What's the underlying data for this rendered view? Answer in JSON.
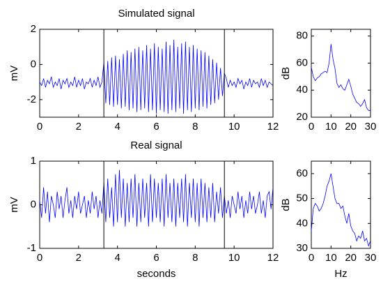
{
  "chart_data": [
    {
      "type": "line",
      "title": "Simulated signal",
      "ylabel": "mV",
      "color": "#0000ff",
      "xlim": [
        0,
        12
      ],
      "xticks": [
        0,
        2,
        4,
        6,
        8,
        10,
        12
      ],
      "ylim": [
        -3,
        2
      ],
      "yticks": [
        -2,
        0,
        2
      ],
      "vlines": [
        3.3,
        9.5
      ],
      "x": [
        0,
        0.1,
        0.2,
        0.3,
        0.4,
        0.5,
        0.6,
        0.7,
        0.8,
        0.9,
        1,
        1.1,
        1.2,
        1.3,
        1.4,
        1.5,
        1.6,
        1.7,
        1.8,
        1.9,
        2,
        2.1,
        2.2,
        2.3,
        2.4,
        2.5,
        2.6,
        2.7,
        2.8,
        2.9,
        3,
        3.1,
        3.2,
        3.3,
        3.4,
        3.5,
        3.6,
        3.7,
        3.8,
        3.9,
        4,
        4.1,
        4.2,
        4.3,
        4.4,
        4.5,
        4.6,
        4.7,
        4.8,
        4.9,
        5,
        5.1,
        5.2,
        5.3,
        5.4,
        5.5,
        5.6,
        5.7,
        5.8,
        5.9,
        6,
        6.1,
        6.2,
        6.3,
        6.4,
        6.5,
        6.6,
        6.7,
        6.8,
        6.9,
        7,
        7.1,
        7.2,
        7.3,
        7.4,
        7.5,
        7.6,
        7.7,
        7.8,
        7.9,
        8,
        8.1,
        8.2,
        8.3,
        8.4,
        8.5,
        8.6,
        8.7,
        8.8,
        8.9,
        9,
        9.1,
        9.2,
        9.3,
        9.4,
        9.5,
        9.6,
        9.7,
        9.8,
        9.9,
        10,
        10.1,
        10.2,
        10.3,
        10.4,
        10.5,
        10.6,
        10.7,
        10.8,
        10.9,
        11,
        11.1,
        11.2,
        11.3,
        11.4,
        11.5,
        11.6,
        11.7,
        11.8,
        11.9,
        12
      ],
      "values": [
        -1.0,
        -1.2,
        -0.8,
        -1.3,
        -0.9,
        -1.1,
        -0.7,
        -1.3,
        -1.0,
        -1.2,
        -0.8,
        -1.4,
        -0.9,
        -1.1,
        -0.8,
        -1.3,
        -1.0,
        -1.2,
        -0.7,
        -1.3,
        -0.9,
        -1.2,
        -0.8,
        -1.4,
        -1.0,
        -1.1,
        -0.8,
        -1.3,
        -0.9,
        -1.2,
        -0.7,
        -1.3,
        -1.0,
        0.1,
        -2.2,
        0.2,
        -2.3,
        0.4,
        -2.4,
        0.5,
        -2.3,
        0.3,
        -2.5,
        0.6,
        -2.4,
        0.8,
        -2.6,
        0.7,
        -2.5,
        0.9,
        -2.7,
        1.0,
        -2.6,
        0.8,
        -2.5,
        1.1,
        -2.7,
        0.9,
        -2.6,
        1.2,
        -2.8,
        1.0,
        -2.6,
        0.9,
        -2.7,
        1.3,
        -2.8,
        1.1,
        -2.6,
        1.4,
        -2.7,
        1.0,
        -2.5,
        1.2,
        -2.8,
        1.3,
        -2.6,
        1.0,
        -2.7,
        1.1,
        -2.5,
        0.9,
        -2.6,
        0.8,
        -2.4,
        0.7,
        -2.5,
        0.5,
        -2.3,
        0.3,
        -2.2,
        0.1,
        -2.0,
        -0.2,
        -1.8,
        -0.5,
        -0.8,
        -1.3,
        -0.9,
        -1.2,
        -1.0,
        -1.3,
        -0.8,
        -1.1,
        -0.9,
        -1.4,
        -1.0,
        -1.2,
        -0.8,
        -1.3,
        -0.9,
        -1.1,
        -1.0,
        -1.3,
        -0.8,
        -1.2,
        -0.9,
        -1.3,
        -1.0,
        -1.1,
        -1.2
      ]
    },
    {
      "type": "line",
      "ylabel": "dB",
      "color": "#0000ff",
      "xlim": [
        0,
        30
      ],
      "xticks": [
        0,
        10,
        20,
        30
      ],
      "ylim": [
        20,
        85
      ],
      "yticks": [
        20,
        40,
        60,
        80
      ],
      "x": [
        0,
        1,
        2,
        3,
        4,
        5,
        6,
        7,
        8,
        9,
        10,
        11,
        12,
        13,
        14,
        15,
        16,
        17,
        18,
        19,
        20,
        21,
        22,
        23,
        24,
        25,
        26,
        27,
        28,
        29,
        30
      ],
      "values": [
        57,
        50,
        47,
        49,
        50,
        52,
        53,
        54,
        53,
        60,
        74,
        63,
        56,
        45,
        42,
        44,
        41,
        40,
        44,
        48,
        43,
        37,
        34,
        31,
        30,
        28,
        30,
        33,
        27,
        25,
        25
      ]
    },
    {
      "type": "line",
      "title": "Real signal",
      "ylabel": "mV",
      "xlabel": "seconds",
      "color": "#0000ff",
      "xlim": [
        0,
        12
      ],
      "xticks": [
        0,
        2,
        4,
        6,
        8,
        10,
        12
      ],
      "ylim": [
        -1,
        1
      ],
      "yticks": [
        -1,
        0,
        1
      ],
      "vlines": [
        3.3,
        9.5
      ],
      "x": [
        0,
        0.1,
        0.2,
        0.3,
        0.4,
        0.5,
        0.6,
        0.7,
        0.8,
        0.9,
        1,
        1.1,
        1.2,
        1.3,
        1.4,
        1.5,
        1.6,
        1.7,
        1.8,
        1.9,
        2,
        2.1,
        2.2,
        2.3,
        2.4,
        2.5,
        2.6,
        2.7,
        2.8,
        2.9,
        3,
        3.1,
        3.2,
        3.3,
        3.4,
        3.5,
        3.6,
        3.7,
        3.8,
        3.9,
        4,
        4.1,
        4.2,
        4.3,
        4.4,
        4.5,
        4.6,
        4.7,
        4.8,
        4.9,
        5,
        5.1,
        5.2,
        5.3,
        5.4,
        5.5,
        5.6,
        5.7,
        5.8,
        5.9,
        6,
        6.1,
        6.2,
        6.3,
        6.4,
        6.5,
        6.6,
        6.7,
        6.8,
        6.9,
        7,
        7.1,
        7.2,
        7.3,
        7.4,
        7.5,
        7.6,
        7.7,
        7.8,
        7.9,
        8,
        8.1,
        8.2,
        8.3,
        8.4,
        8.5,
        8.6,
        8.7,
        8.8,
        8.9,
        9,
        9.1,
        9.2,
        9.3,
        9.4,
        9.5,
        9.6,
        9.7,
        9.8,
        9.9,
        10,
        10.1,
        10.2,
        10.3,
        10.4,
        10.5,
        10.6,
        10.7,
        10.8,
        10.9,
        11,
        11.1,
        11.2,
        11.3,
        11.4,
        11.5,
        11.6,
        11.7,
        11.8,
        11.9,
        12
      ],
      "values": [
        0.1,
        -0.3,
        0.4,
        -0.2,
        0.3,
        -0.4,
        0.2,
        0.0,
        -0.3,
        0.3,
        -0.1,
        0.2,
        -0.3,
        0.1,
        0.4,
        -0.2,
        0.1,
        -0.3,
        0.2,
        -0.1,
        0.3,
        -0.2,
        0.0,
        0.2,
        -0.3,
        0.1,
        -0.2,
        0.3,
        -0.1,
        0.2,
        -0.3,
        0.1,
        -0.2,
        0.5,
        -0.4,
        0.6,
        -0.3,
        0.4,
        -0.5,
        0.7,
        -0.4,
        0.8,
        -0.3,
        0.6,
        -0.5,
        0.5,
        -0.4,
        0.6,
        -0.3,
        0.7,
        -0.5,
        0.5,
        -0.4,
        0.6,
        -0.3,
        0.5,
        -0.5,
        0.7,
        -0.4,
        0.6,
        -0.3,
        0.5,
        -0.4,
        0.6,
        -0.5,
        0.7,
        -0.3,
        0.5,
        -0.4,
        0.6,
        -0.5,
        0.5,
        -0.3,
        0.6,
        -0.4,
        0.7,
        -0.5,
        0.5,
        -0.3,
        0.6,
        -0.4,
        0.5,
        -0.5,
        0.6,
        -0.3,
        0.5,
        -0.4,
        0.4,
        -0.3,
        0.5,
        -0.4,
        0.3,
        -0.2,
        0.4,
        -0.3,
        0.2,
        -0.2,
        0.1,
        -0.3,
        0.2,
        0.0,
        -0.2,
        0.3,
        -0.1,
        0.2,
        -0.3,
        0.1,
        -0.2,
        0.3,
        -0.1,
        0.2,
        -0.2,
        0.0,
        0.3,
        -0.2,
        0.1,
        -0.3,
        0.2,
        0.3,
        -0.1,
        0.4
      ]
    },
    {
      "type": "line",
      "ylabel": "dB",
      "xlabel": "Hz",
      "color": "#0000ff",
      "xlim": [
        0,
        30
      ],
      "xticks": [
        0,
        10,
        20,
        30
      ],
      "ylim": [
        30,
        65
      ],
      "yticks": [
        30,
        40,
        50,
        60
      ],
      "x": [
        0,
        1,
        2,
        3,
        4,
        5,
        6,
        7,
        8,
        9,
        10,
        11,
        12,
        13,
        14,
        15,
        16,
        17,
        18,
        19,
        20,
        21,
        22,
        23,
        24,
        25,
        26,
        27,
        28,
        29,
        30
      ],
      "values": [
        37,
        46,
        48,
        47,
        45,
        46,
        48,
        51,
        55,
        57,
        60,
        55,
        50,
        48,
        48,
        46,
        47,
        43,
        40,
        44,
        39,
        37,
        36,
        33,
        35,
        34,
        37,
        33,
        34,
        31,
        33
      ]
    }
  ]
}
